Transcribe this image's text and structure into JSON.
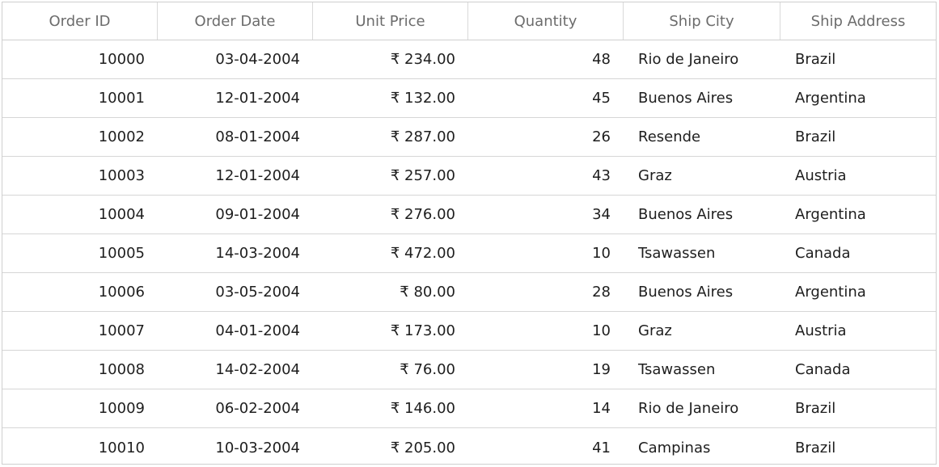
{
  "grid": {
    "columns": [
      "Order ID",
      "Order Date",
      "Unit Price",
      "Quantity",
      "Ship City",
      "Ship Address"
    ],
    "rows": [
      [
        "10000",
        "03-04-2004",
        "₹ 234.00",
        "48",
        "Rio de Janeiro",
        "Brazil"
      ],
      [
        "10001",
        "12-01-2004",
        "₹ 132.00",
        "45",
        "Buenos Aires",
        "Argentina"
      ],
      [
        "10002",
        "08-01-2004",
        "₹ 287.00",
        "26",
        "Resende",
        "Brazil"
      ],
      [
        "10003",
        "12-01-2004",
        "₹ 257.00",
        "43",
        "Graz",
        "Austria"
      ],
      [
        "10004",
        "09-01-2004",
        "₹ 276.00",
        "34",
        "Buenos Aires",
        "Argentina"
      ],
      [
        "10005",
        "14-03-2004",
        "₹ 472.00",
        "10",
        "Tsawassen",
        "Canada"
      ],
      [
        "10006",
        "03-05-2004",
        "₹ 80.00",
        "28",
        "Buenos Aires",
        "Argentina"
      ],
      [
        "10007",
        "04-01-2004",
        "₹ 173.00",
        "10",
        "Graz",
        "Austria"
      ],
      [
        "10008",
        "14-02-2004",
        "₹ 76.00",
        "19",
        "Tsawassen",
        "Canada"
      ],
      [
        "10009",
        "06-02-2004",
        "₹ 146.00",
        "14",
        "Rio de Janeiro",
        "Brazil"
      ],
      [
        "10010",
        "10-03-2004",
        "₹ 205.00",
        "41",
        "Campinas",
        "Brazil"
      ]
    ]
  }
}
